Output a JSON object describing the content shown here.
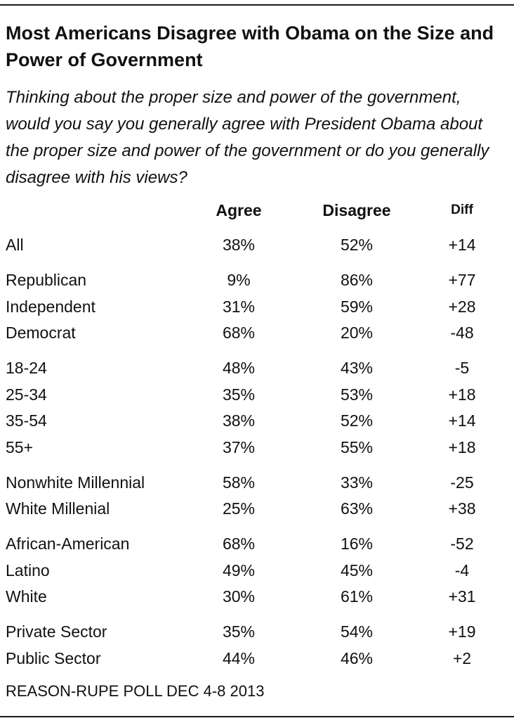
{
  "chart_data": {
    "type": "table",
    "title": "Most Americans Disagree with Obama on the Size and Power of Government",
    "subtitle": "Thinking about the proper size and power of the government, would you say you generally agree with President Obama about the proper size and power of the government or do you generally disagree with his views?",
    "columns": [
      "Agree",
      "Disagree",
      "Diff"
    ],
    "rows": [
      {
        "label": "All",
        "agree": "38%",
        "disagree": "52%",
        "diff": "+14",
        "group": 0
      },
      {
        "label": "Republican",
        "agree": "9%",
        "disagree": "86%",
        "diff": "+77",
        "group": 1
      },
      {
        "label": "Independent",
        "agree": "31%",
        "disagree": "59%",
        "diff": "+28",
        "group": 1
      },
      {
        "label": "Democrat",
        "agree": "68%",
        "disagree": "20%",
        "diff": "-48",
        "group": 1
      },
      {
        "label": "18-24",
        "agree": "48%",
        "disagree": "43%",
        "diff": "-5",
        "group": 2
      },
      {
        "label": "25-34",
        "agree": "35%",
        "disagree": "53%",
        "diff": "+18",
        "group": 2
      },
      {
        "label": "35-54",
        "agree": "38%",
        "disagree": "52%",
        "diff": "+14",
        "group": 2
      },
      {
        "label": "55+",
        "agree": "37%",
        "disagree": "55%",
        "diff": "+18",
        "group": 2
      },
      {
        "label": "Nonwhite Millennial",
        "agree": "58%",
        "disagree": "33%",
        "diff": "-25",
        "group": 3
      },
      {
        "label": "White Millenial",
        "agree": "25%",
        "disagree": "63%",
        "diff": "+38",
        "group": 3
      },
      {
        "label": "African-American",
        "agree": "68%",
        "disagree": "16%",
        "diff": "-52",
        "group": 4
      },
      {
        "label": "Latino",
        "agree": "49%",
        "disagree": "45%",
        "diff": "-4",
        "group": 4
      },
      {
        "label": "White",
        "agree": "30%",
        "disagree": "61%",
        "diff": "+31",
        "group": 4
      },
      {
        "label": "Private Sector",
        "agree": "35%",
        "disagree": "54%",
        "diff": "+19",
        "group": 5
      },
      {
        "label": "Public Sector",
        "agree": "44%",
        "disagree": "46%",
        "diff": "+2",
        "group": 5
      }
    ],
    "source": "REASON-RUPE POLL DEC 4-8 2013"
  }
}
